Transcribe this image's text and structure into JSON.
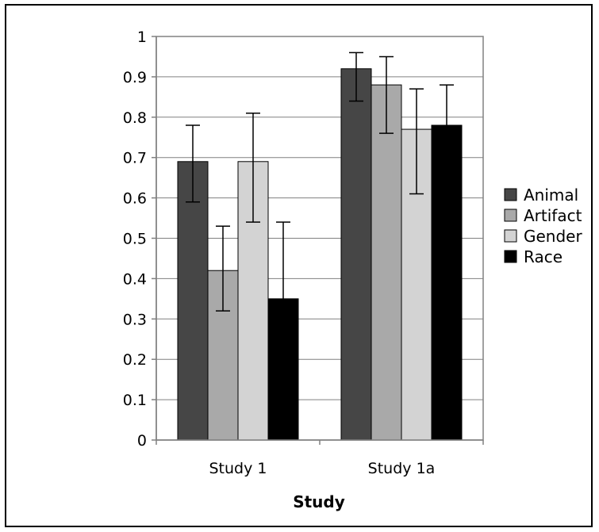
{
  "chart_data": {
    "type": "bar",
    "title": "",
    "xlabel": "Study",
    "ylabel": "",
    "ylim": [
      0,
      1
    ],
    "yticks": [
      "0",
      "0.1",
      "0.2",
      "0.3",
      "0.4",
      "0.5",
      "0.6",
      "0.7",
      "0.8",
      "0.9",
      "1"
    ],
    "categories": [
      "Study 1",
      "Study 1a"
    ],
    "grid": true,
    "legend": "right",
    "error_bars": true,
    "series": [
      {
        "name": "Animal",
        "color": "#464646",
        "values": [
          0.69,
          0.92
        ],
        "error_low": [
          0.59,
          0.84
        ],
        "error_high": [
          0.78,
          0.96
        ]
      },
      {
        "name": "Artifact",
        "color": "#a9a9a9",
        "values": [
          0.42,
          0.88
        ],
        "error_low": [
          0.32,
          0.76
        ],
        "error_high": [
          0.53,
          0.95
        ]
      },
      {
        "name": "Gender",
        "color": "#d3d3d3",
        "values": [
          0.69,
          0.77
        ],
        "error_low": [
          0.54,
          0.61
        ],
        "error_high": [
          0.81,
          0.87
        ]
      },
      {
        "name": "Race",
        "color": "#000000",
        "values": [
          0.35,
          0.78
        ],
        "error_low": [
          0.16,
          0.68
        ],
        "error_high": [
          0.54,
          0.88
        ]
      }
    ]
  }
}
